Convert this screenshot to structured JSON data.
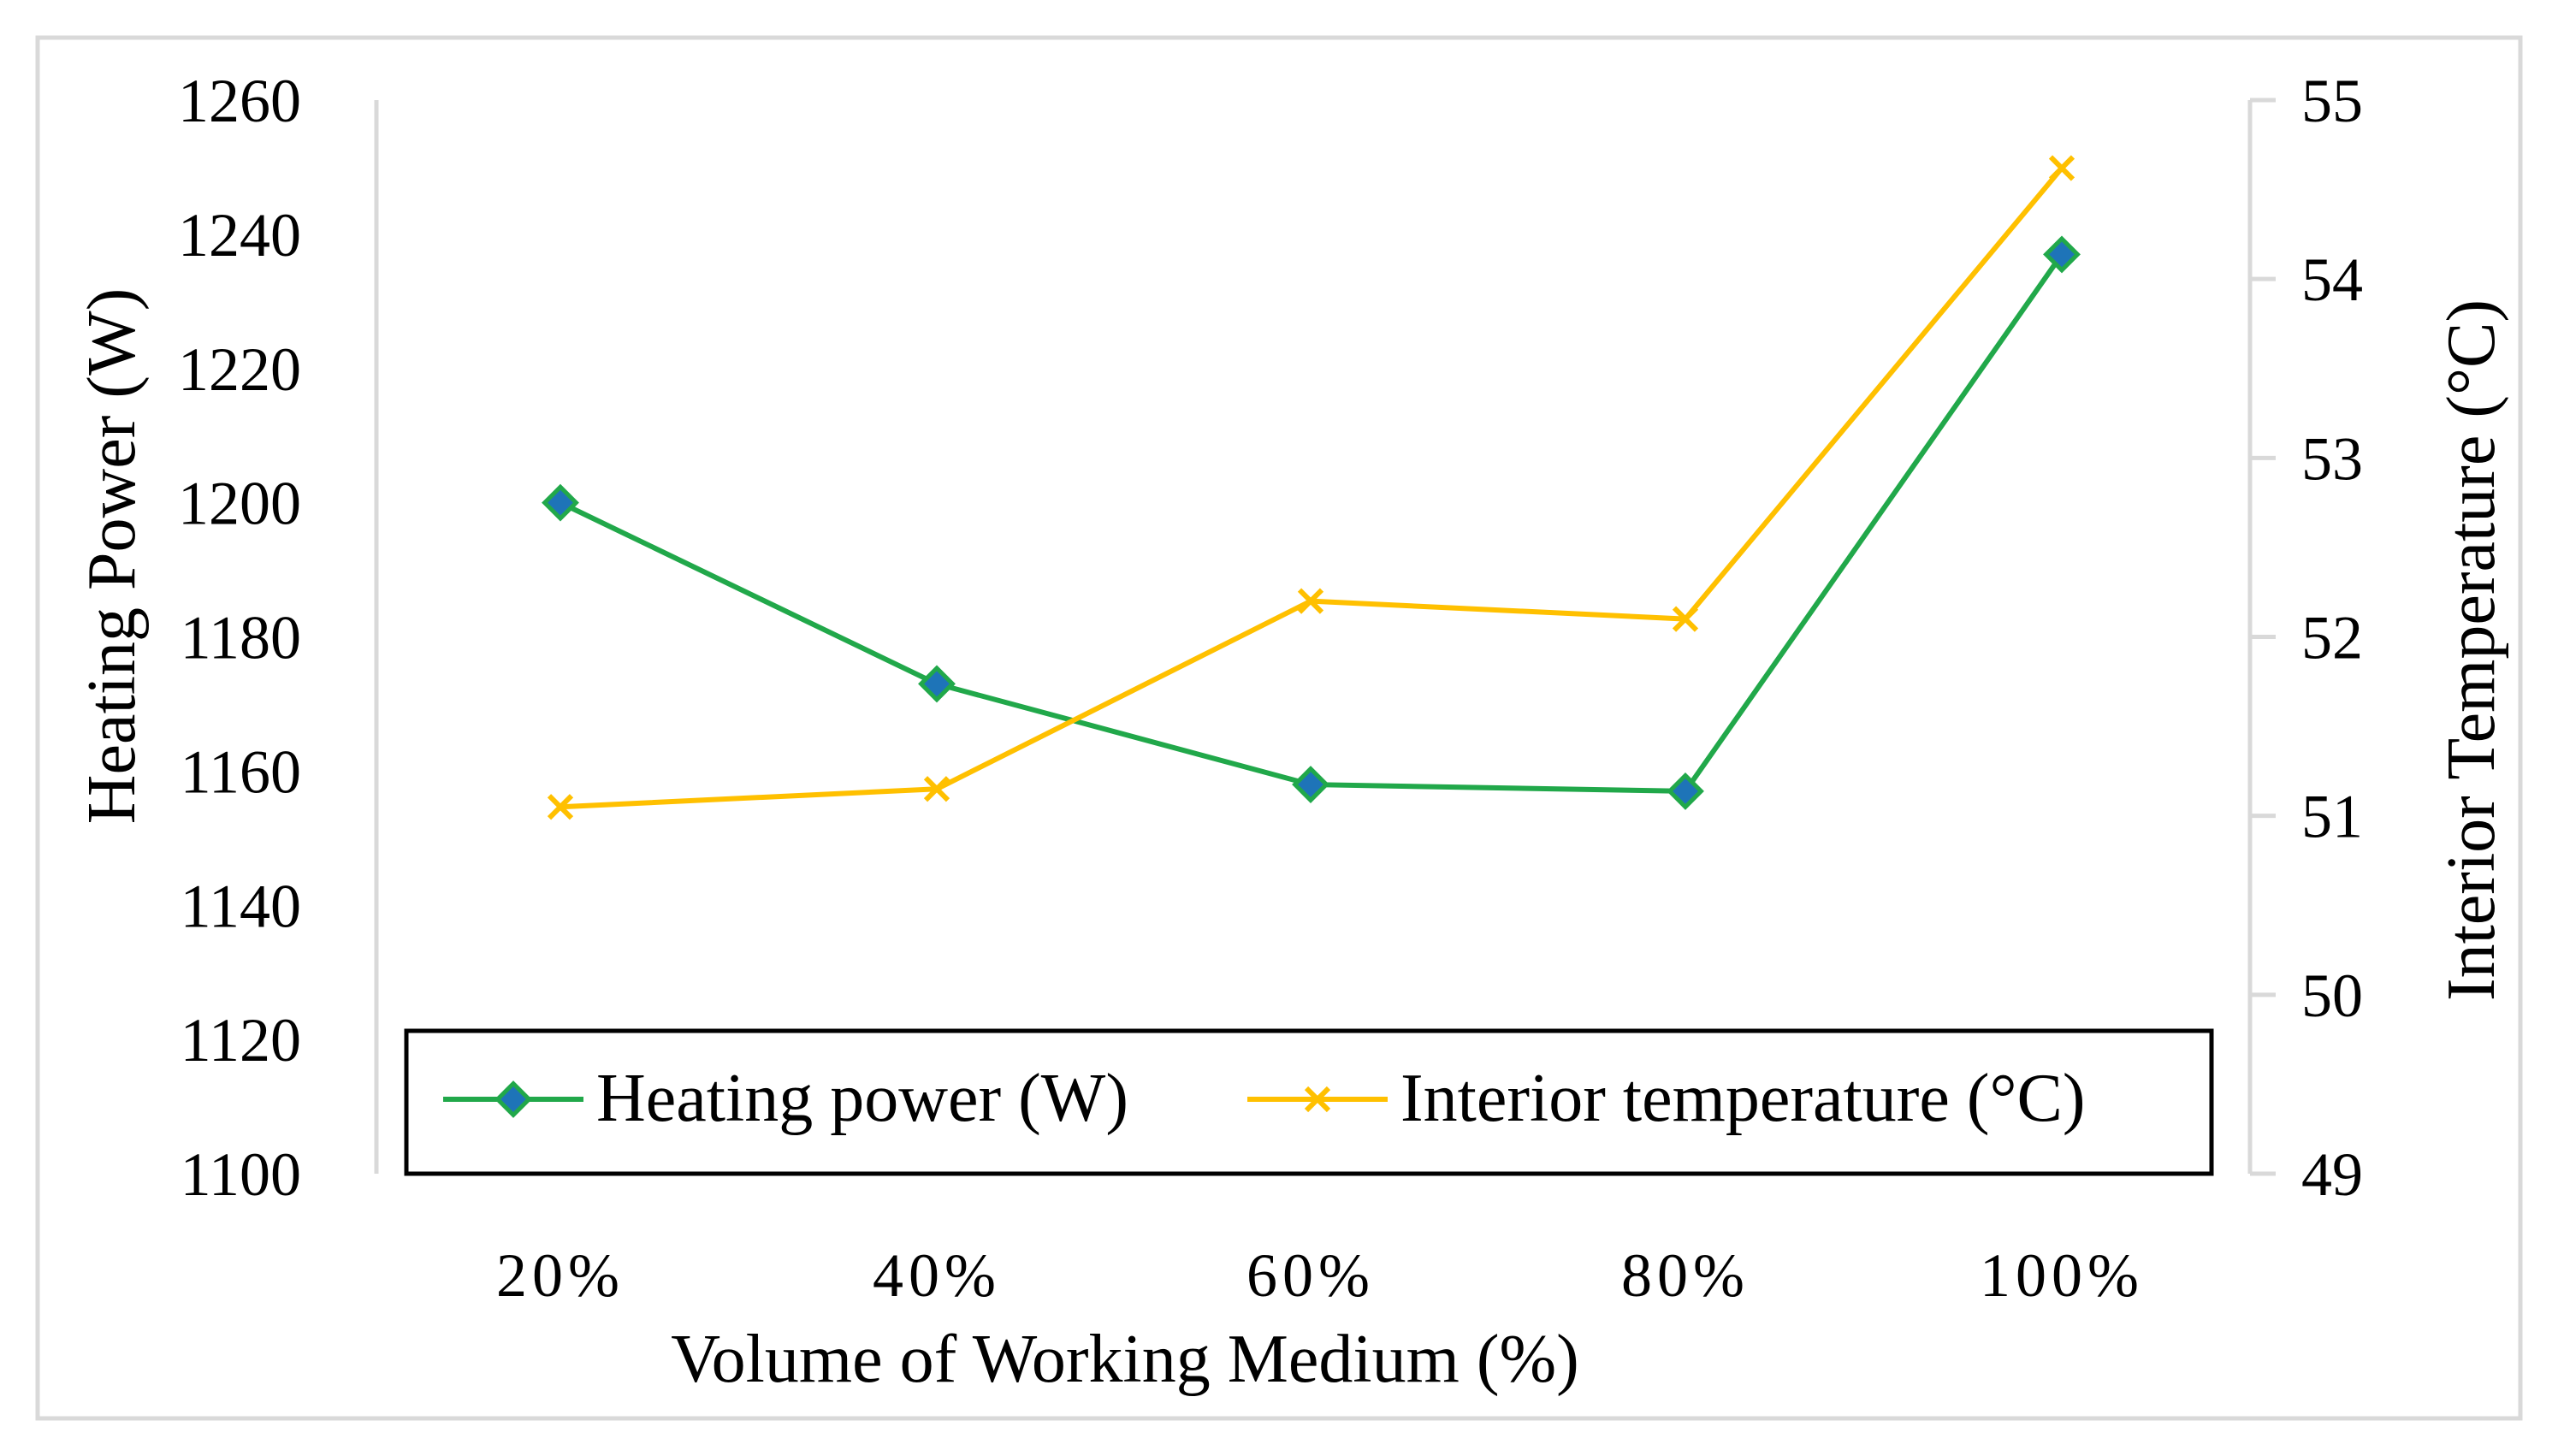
{
  "chart_data": {
    "type": "line",
    "categories": [
      "20%",
      "40%",
      "60%",
      "80%",
      "100%"
    ],
    "xlabel": "Volume of Working Medium (%)",
    "ylabel_left": "Heating Power (W)",
    "ylabel_right": "Interior Temperature (°C)",
    "ylim_left": [
      1100,
      1260
    ],
    "yticks_left": [
      "1100",
      "1120",
      "1140",
      "1160",
      "1180",
      "1200",
      "1220",
      "1240",
      "1260"
    ],
    "ylim_right": [
      49,
      55
    ],
    "yticks_right": [
      "49",
      "50",
      "51",
      "52",
      "53",
      "54",
      "55"
    ],
    "grid": false,
    "legend_position": "bottom-center-inside",
    "series": [
      {
        "name": "Heating power (W)",
        "axis": "left",
        "marker": "diamond",
        "color": "#21A84A",
        "marker_color": "#1E74B8",
        "values": [
          1200,
          1173,
          1158,
          1157,
          1237
        ]
      },
      {
        "name": "Interior temperature (°C)",
        "axis": "right",
        "marker": "x",
        "color": "#FFC000",
        "values": [
          51.05,
          51.15,
          52.2,
          52.1,
          54.62
        ]
      }
    ]
  }
}
